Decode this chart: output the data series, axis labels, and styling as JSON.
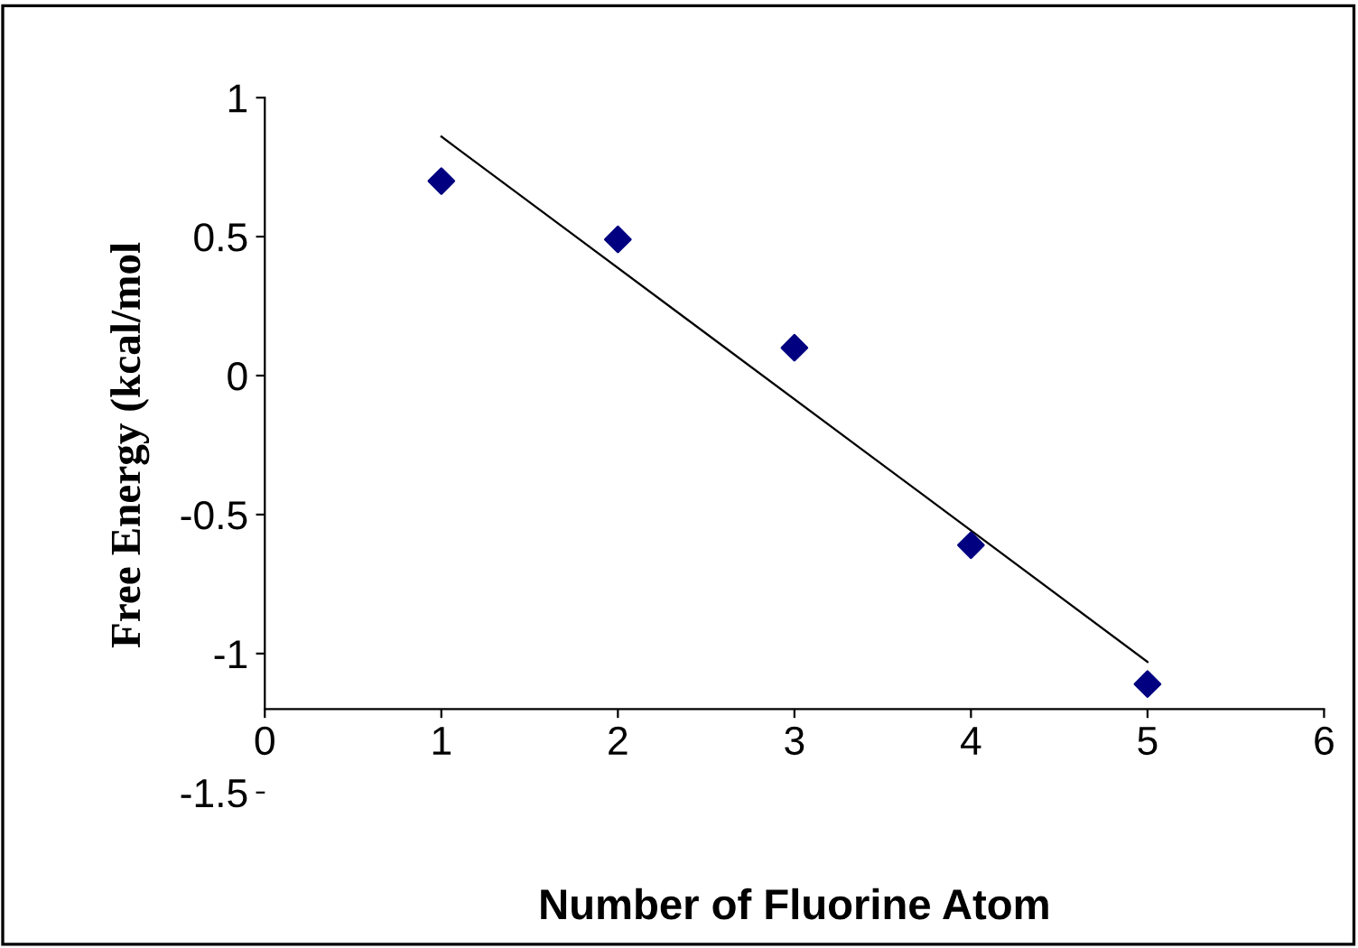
{
  "chart_data": {
    "type": "scatter",
    "xlabel": "Number of Fluorine Atom",
    "ylabel": "Free Energy (kcal/mol",
    "series": [
      {
        "color": "#000080",
        "marker": "diamond",
        "x": [
          1,
          2,
          3,
          4,
          5
        ],
        "values": [
          0.7,
          0.49,
          0.1,
          -0.61,
          -1.11
        ]
      },
      {
        "type": "line",
        "color": "#000000",
        "marker": "none",
        "x": [
          1,
          5
        ],
        "values": [
          0.86,
          -1.03
        ]
      }
    ],
    "xlim": [
      0,
      6
    ],
    "ylim": [
      -1.5,
      1
    ],
    "xticks": [
      0,
      1,
      2,
      3,
      4,
      5,
      6
    ],
    "yticks": [
      -1.5,
      -1,
      -0.5,
      0,
      0.5,
      1
    ],
    "grid": false,
    "legend": false
  }
}
